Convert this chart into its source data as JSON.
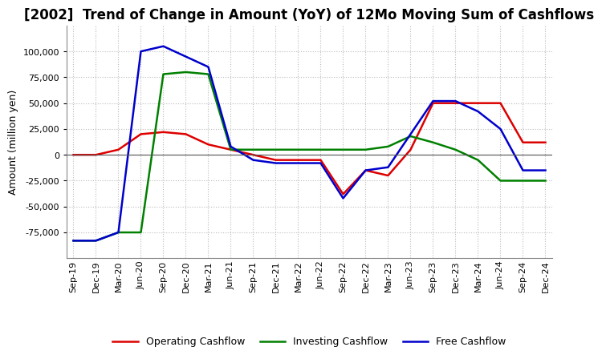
{
  "title": "[2002]  Trend of Change in Amount (YoY) of 12Mo Moving Sum of Cashflows",
  "ylabel": "Amount (million yen)",
  "x_labels": [
    "Sep-19",
    "Dec-19",
    "Mar-20",
    "Jun-20",
    "Sep-20",
    "Dec-20",
    "Mar-21",
    "Jun-21",
    "Sep-21",
    "Dec-21",
    "Mar-22",
    "Jun-22",
    "Sep-22",
    "Dec-22",
    "Mar-23",
    "Jun-23",
    "Sep-23",
    "Dec-23",
    "Mar-24",
    "Jun-24",
    "Sep-24",
    "Dec-24"
  ],
  "operating": [
    0,
    0,
    5000,
    20000,
    22000,
    20000,
    10000,
    5000,
    0,
    -5000,
    -5000,
    -5000,
    -38000,
    -15000,
    -20000,
    5000,
    50000,
    50000,
    50000,
    50000,
    12000,
    12000
  ],
  "investing": [
    -83000,
    -83000,
    -75000,
    -75000,
    78000,
    80000,
    78000,
    5000,
    5000,
    5000,
    5000,
    5000,
    5000,
    5000,
    8000,
    18000,
    12000,
    5000,
    -5000,
    -25000,
    -25000,
    -25000
  ],
  "free": [
    -83000,
    -83000,
    -75000,
    100000,
    105000,
    95000,
    85000,
    8000,
    -5000,
    -8000,
    -8000,
    -8000,
    -42000,
    -15000,
    -12000,
    20000,
    52000,
    52000,
    42000,
    25000,
    -15000,
    -15000
  ],
  "ylim": [
    -100000,
    125000
  ],
  "yticks": [
    -75000,
    -50000,
    -25000,
    0,
    25000,
    50000,
    75000,
    100000
  ],
  "line_colors": {
    "operating": "#dd0000",
    "investing": "#008000",
    "free": "#0000cc"
  },
  "legend_labels": [
    "Operating Cashflow",
    "Investing Cashflow",
    "Free Cashflow"
  ],
  "background_color": "#ffffff",
  "grid_color": "#bbbbbb",
  "title_fontsize": 12,
  "label_fontsize": 9,
  "tick_fontsize": 8
}
